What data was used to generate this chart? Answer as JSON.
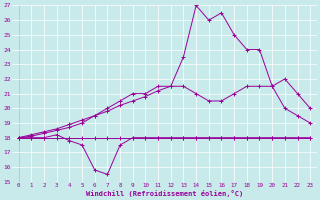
{
  "background_color": "#c8eaea",
  "grid_color": "#ffffff",
  "line_color": "#990099",
  "xlim": [
    -0.5,
    23.5
  ],
  "ylim": [
    15,
    27
  ],
  "xticks": [
    0,
    1,
    2,
    3,
    4,
    5,
    6,
    7,
    8,
    9,
    10,
    11,
    12,
    13,
    14,
    15,
    16,
    17,
    18,
    19,
    20,
    21,
    22,
    23
  ],
  "yticks": [
    15,
    16,
    17,
    18,
    19,
    20,
    21,
    22,
    23,
    24,
    25,
    26,
    27
  ],
  "xlabel": "Windchill (Refroidissement éolien,°C)",
  "series": [
    {
      "x": [
        0,
        1,
        2,
        3,
        4,
        5,
        6,
        7,
        8,
        9,
        10,
        11,
        12,
        13,
        14,
        15,
        16,
        17,
        18,
        19,
        20,
        21,
        22,
        23
      ],
      "y": [
        18,
        18,
        18,
        18,
        18,
        18,
        18,
        18,
        18,
        18,
        18,
        18,
        18,
        18,
        18,
        18,
        18,
        18,
        18,
        18,
        18,
        18,
        18,
        18
      ]
    },
    {
      "x": [
        0,
        1,
        2,
        3,
        4,
        5,
        6,
        7,
        8,
        9,
        10,
        11,
        12,
        13,
        14,
        15,
        16,
        17,
        18,
        19,
        20,
        21,
        22,
        23
      ],
      "y": [
        18,
        18,
        18,
        18.2,
        17.8,
        17.5,
        15.8,
        15.5,
        17.5,
        18,
        18,
        18,
        18,
        18,
        18,
        18,
        18,
        18,
        18,
        18,
        18,
        18,
        18,
        18
      ]
    },
    {
      "x": [
        0,
        1,
        2,
        3,
        4,
        5,
        6,
        7,
        8,
        9,
        10,
        11,
        12,
        13,
        14,
        15,
        16,
        17,
        18,
        19,
        20,
        21,
        22,
        23
      ],
      "y": [
        18,
        18.2,
        18.4,
        18.6,
        18.9,
        19.2,
        19.5,
        19.8,
        20.2,
        20.5,
        20.8,
        21.2,
        21.5,
        21.5,
        21,
        20.5,
        20.5,
        21,
        21.5,
        21.5,
        21.5,
        22,
        21,
        20
      ]
    },
    {
      "x": [
        0,
        1,
        2,
        3,
        4,
        5,
        6,
        7,
        8,
        9,
        10,
        11,
        12,
        13,
        14,
        15,
        16,
        17,
        18,
        19,
        20,
        21,
        22,
        23
      ],
      "y": [
        18,
        18.1,
        18.3,
        18.5,
        18.7,
        19,
        19.5,
        20,
        20.5,
        21,
        21,
        21.5,
        21.5,
        23.5,
        27,
        26,
        26.5,
        25,
        24,
        24,
        21.5,
        20,
        19.5,
        19
      ]
    }
  ],
  "figsize": [
    3.2,
    2.0
  ],
  "dpi": 100
}
